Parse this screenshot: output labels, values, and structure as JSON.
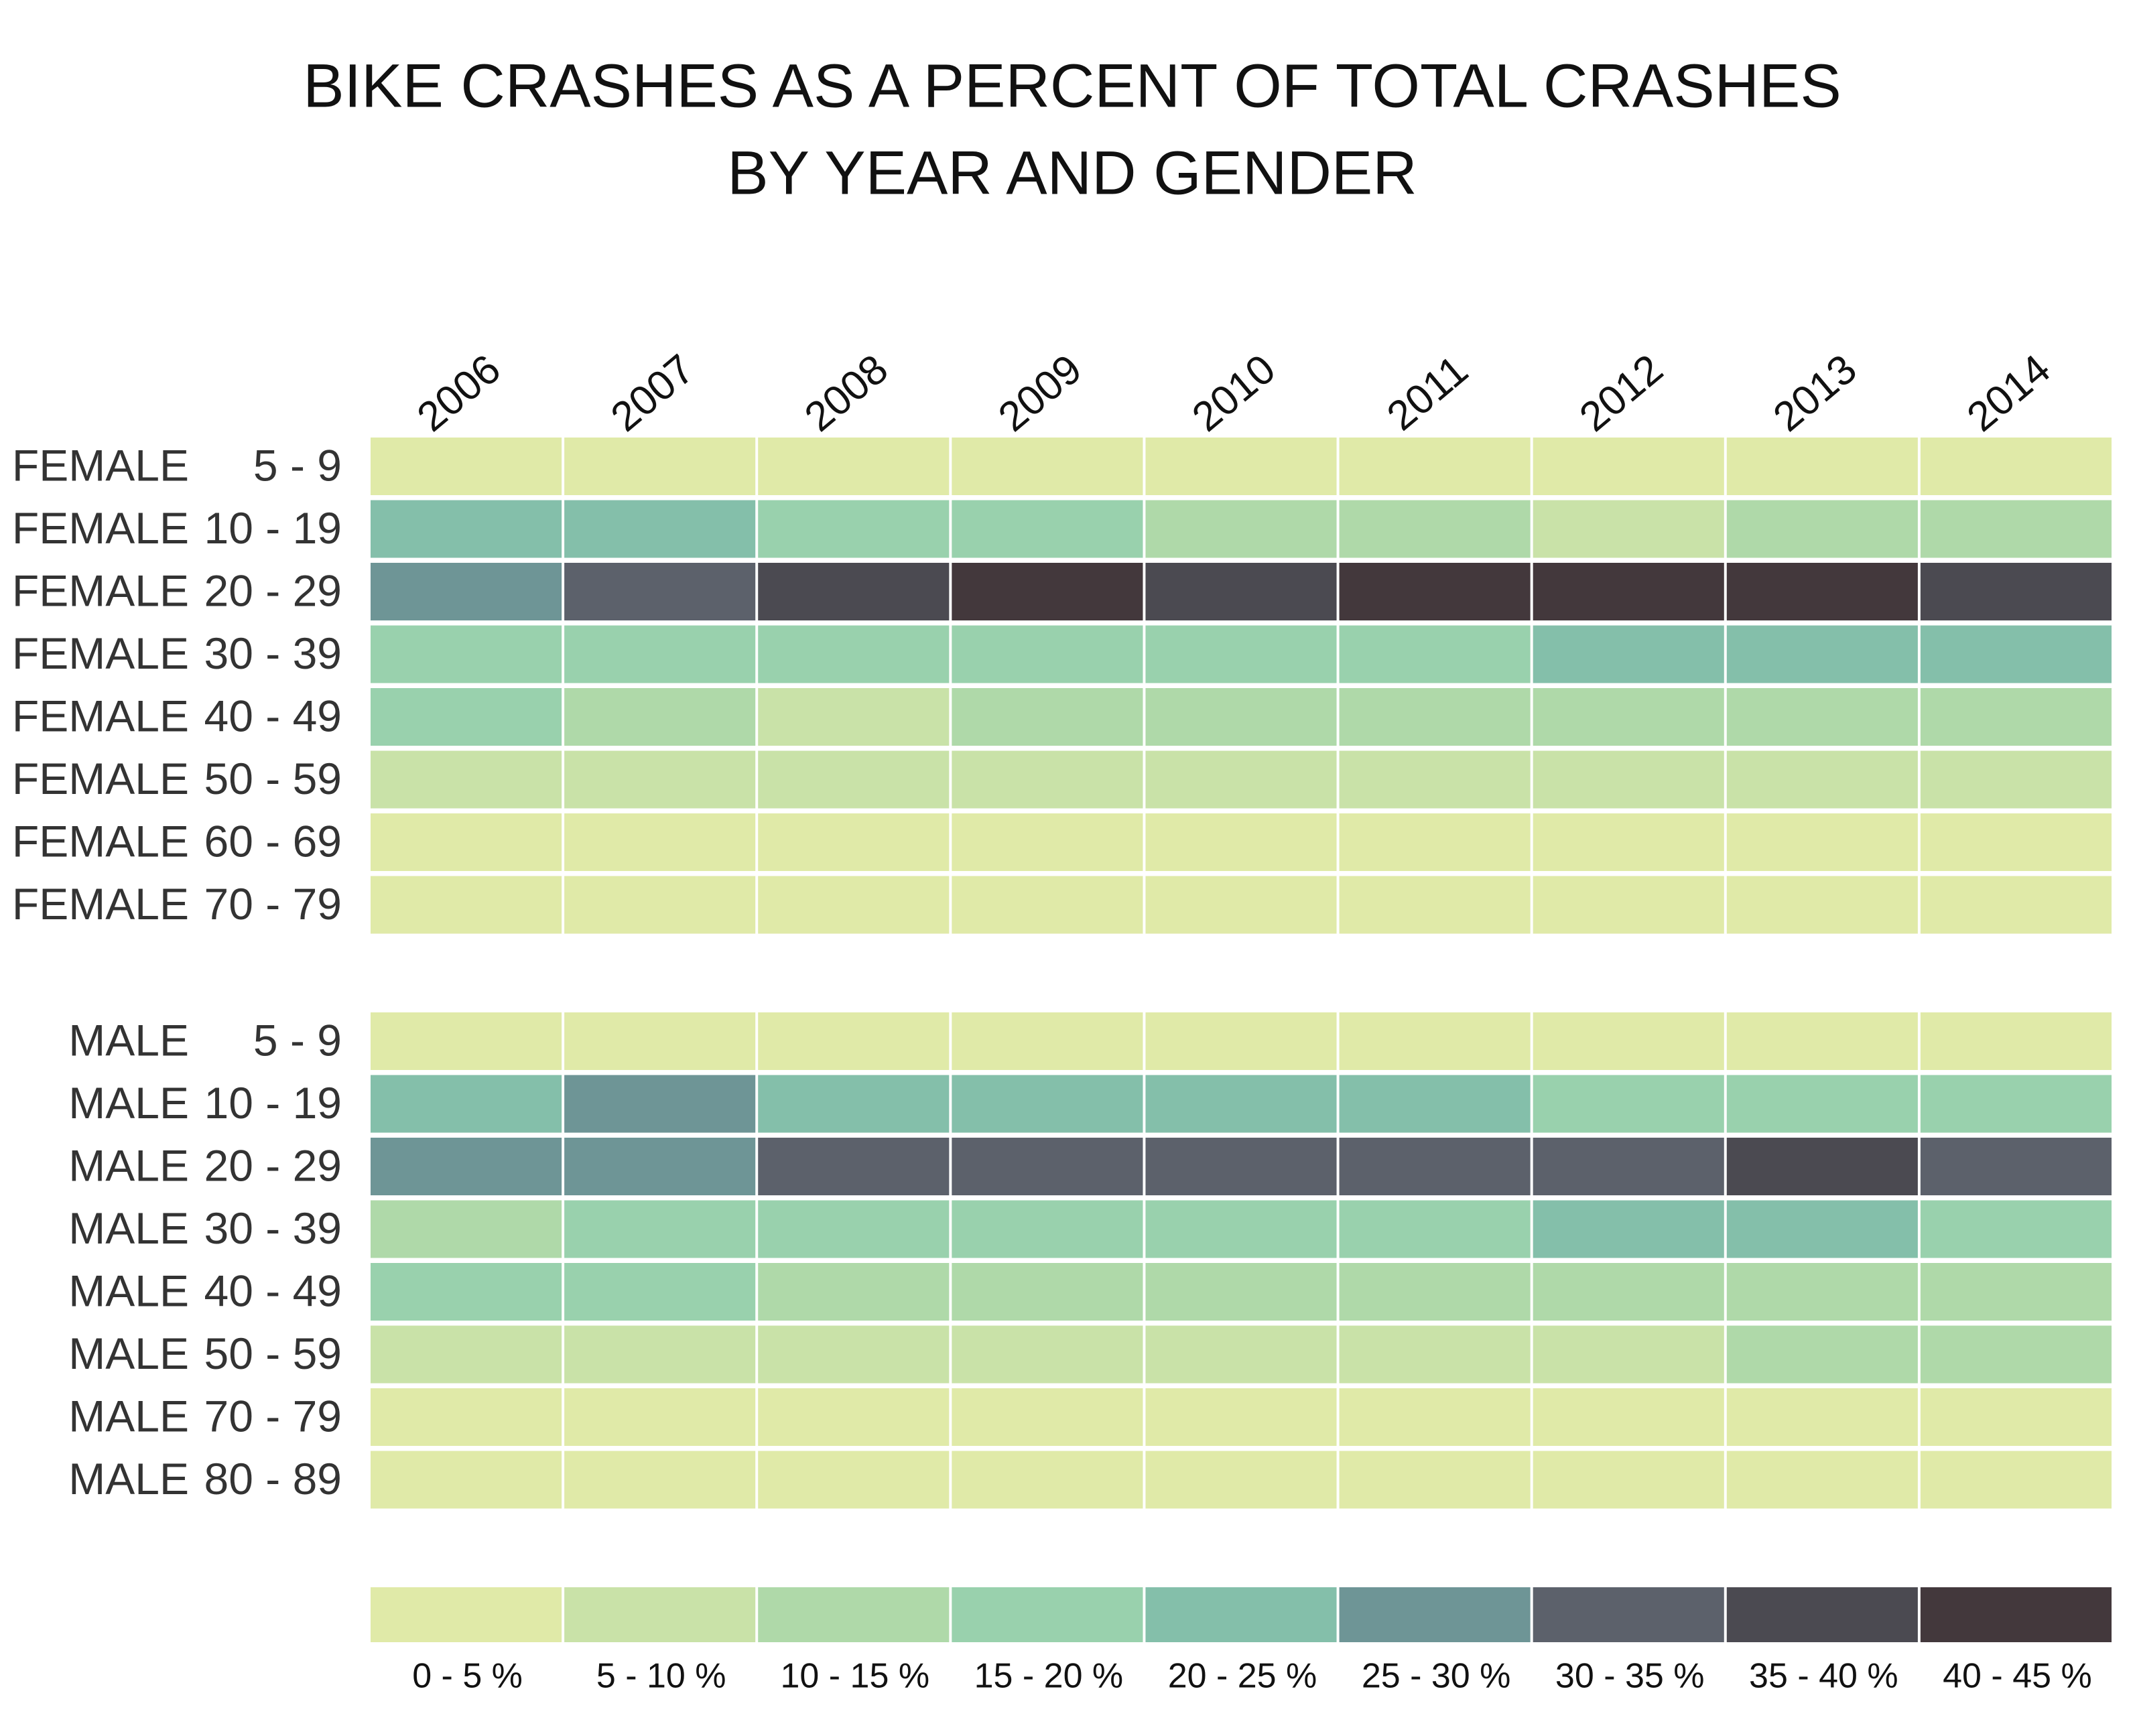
{
  "chart_data": {
    "type": "heatmap",
    "title": [
      "BIKE CRASHES  AS A PERCENT OF TOTAL CRASHES",
      "BY YEAR AND GENDER"
    ],
    "x": [
      "2006",
      "2007",
      "2008",
      "2009",
      "2010",
      "2011",
      "2012",
      "2013",
      "2014"
    ],
    "rows": [
      {
        "group": "FEMALE",
        "age": "5 - 9"
      },
      {
        "group": "FEMALE",
        "age": "10 - 19"
      },
      {
        "group": "FEMALE",
        "age": "20 - 29"
      },
      {
        "group": "FEMALE",
        "age": "30 - 39"
      },
      {
        "group": "FEMALE",
        "age": "40 - 49"
      },
      {
        "group": "FEMALE",
        "age": "50 - 59"
      },
      {
        "group": "FEMALE",
        "age": "60 - 69"
      },
      {
        "group": "FEMALE",
        "age": "70 - 79"
      },
      {
        "group": "MALE",
        "age": "5 - 9"
      },
      {
        "group": "MALE",
        "age": "10 - 19"
      },
      {
        "group": "MALE",
        "age": "20 - 29"
      },
      {
        "group": "MALE",
        "age": "30 - 39"
      },
      {
        "group": "MALE",
        "age": "40 - 49"
      },
      {
        "group": "MALE",
        "age": "50 - 59"
      },
      {
        "group": "MALE",
        "age": "70 - 79"
      },
      {
        "group": "MALE",
        "age": "80 - 89"
      }
    ],
    "values": [
      [
        2.5,
        2.5,
        2.5,
        2.5,
        2.5,
        2.5,
        2.5,
        2.5,
        2.5
      ],
      [
        22.5,
        22.5,
        17.5,
        17.5,
        12.5,
        12.5,
        7.5,
        12.5,
        12.5
      ],
      [
        27.5,
        32.5,
        37.5,
        42.5,
        37.5,
        42.5,
        42.5,
        42.5,
        37.5
      ],
      [
        17.5,
        17.5,
        17.5,
        17.5,
        17.5,
        17.5,
        22.5,
        22.5,
        22.5
      ],
      [
        17.5,
        12.5,
        7.5,
        12.5,
        12.5,
        12.5,
        12.5,
        12.5,
        12.5
      ],
      [
        7.5,
        7.5,
        7.5,
        7.5,
        7.5,
        7.5,
        7.5,
        7.5,
        7.5
      ],
      [
        2.5,
        2.5,
        2.5,
        2.5,
        2.5,
        2.5,
        2.5,
        2.5,
        2.5
      ],
      [
        2.5,
        2.5,
        2.5,
        2.5,
        2.5,
        2.5,
        2.5,
        2.5,
        2.5
      ],
      [
        2.5,
        2.5,
        2.5,
        2.5,
        2.5,
        2.5,
        2.5,
        2.5,
        2.5
      ],
      [
        22.5,
        27.5,
        22.5,
        22.5,
        22.5,
        22.5,
        17.5,
        17.5,
        17.5
      ],
      [
        27.5,
        27.5,
        32.5,
        32.5,
        32.5,
        32.5,
        32.5,
        37.5,
        32.5
      ],
      [
        12.5,
        17.5,
        17.5,
        17.5,
        17.5,
        17.5,
        22.5,
        22.5,
        17.5
      ],
      [
        17.5,
        17.5,
        12.5,
        12.5,
        12.5,
        12.5,
        12.5,
        12.5,
        12.5
      ],
      [
        7.5,
        7.5,
        7.5,
        7.5,
        7.5,
        7.5,
        7.5,
        12.5,
        12.5
      ],
      [
        2.5,
        2.5,
        2.5,
        2.5,
        2.5,
        2.5,
        2.5,
        2.5,
        2.5
      ],
      [
        2.5,
        2.5,
        2.5,
        2.5,
        2.5,
        2.5,
        2.5,
        2.5,
        2.5
      ]
    ],
    "legend": {
      "bins": [
        {
          "label": "0 - 5 %",
          "min": 0,
          "max": 5,
          "color": "#e0eaa8"
        },
        {
          "label": "5 - 10 %",
          "min": 5,
          "max": 10,
          "color": "#c9e2a8"
        },
        {
          "label": "10 - 15 %",
          "min": 10,
          "max": 15,
          "color": "#afd9a9"
        },
        {
          "label": "15 - 20 %",
          "min": 15,
          "max": 20,
          "color": "#99d1ad"
        },
        {
          "label": "20 - 25 %",
          "min": 20,
          "max": 25,
          "color": "#84bfaa"
        },
        {
          "label": "25 - 30 %",
          "min": 25,
          "max": 30,
          "color": "#6e9596"
        },
        {
          "label": "30 - 35 %",
          "min": 30,
          "max": 35,
          "color": "#5c616b"
        },
        {
          "label": "35 - 40 %",
          "min": 35,
          "max": 40,
          "color": "#4b4a51"
        },
        {
          "label": "40 - 45 %",
          "min": 40,
          "max": 45,
          "color": "#43383c"
        }
      ]
    }
  }
}
